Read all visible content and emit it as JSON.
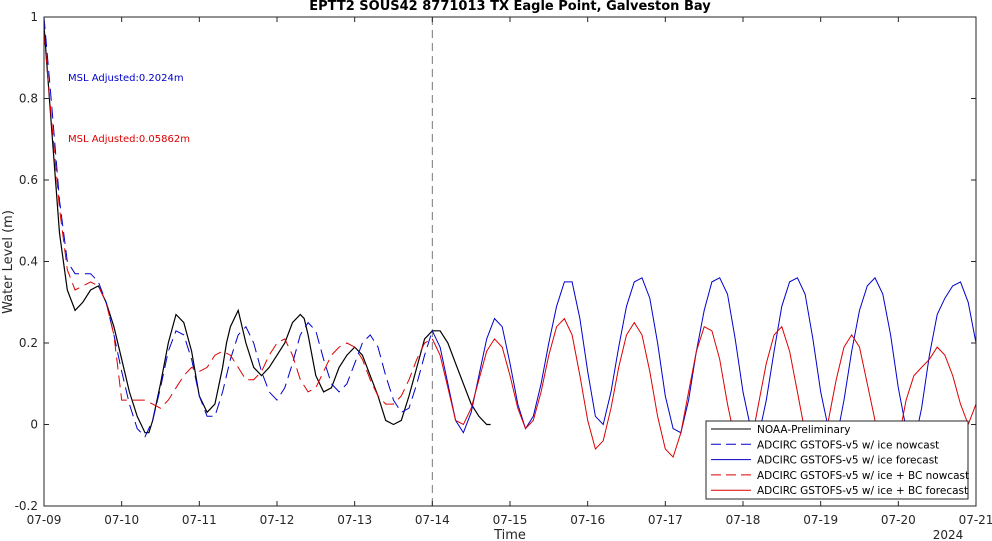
{
  "chart_data": {
    "type": "line",
    "title": "EPTT2 SOUS42 8771013 TX Eagle Point, Galveston Bay",
    "xlabel": "Time",
    "ylabel": "Water Level (m)",
    "year_label": "2024",
    "x_ticks": [
      "07-09",
      "07-10",
      "07-11",
      "07-12",
      "07-13",
      "07-14",
      "07-15",
      "07-16",
      "07-17",
      "07-18",
      "07-19",
      "07-20",
      "07-21"
    ],
    "xlim": [
      "07-09",
      "07-21"
    ],
    "ylim": [
      -0.2,
      1.0
    ],
    "y_ticks": [
      "-0.2",
      "0",
      "0.2",
      "0.4",
      "0.6",
      "0.8",
      "1"
    ],
    "grid": false,
    "nowcast_forecast_divider": "07-14",
    "annotations": [
      {
        "text": "MSL Adjusted:0.2024m",
        "color": "#0000cc"
      },
      {
        "text": "MSL Adjusted:0.05862m",
        "color": "#dd0000"
      }
    ],
    "legend_position": "bottom-right",
    "series": [
      {
        "name": "NOAA-Preliminary",
        "color": "#000000",
        "dash": "solid",
        "x": [
          0.0,
          0.1,
          0.2,
          0.3,
          0.4,
          0.5,
          0.6,
          0.7,
          0.75,
          0.8,
          0.9,
          1.0,
          1.1,
          1.2,
          1.3,
          1.35,
          1.4,
          1.5,
          1.6,
          1.7,
          1.8,
          1.9,
          2.0,
          2.1,
          2.2,
          2.3,
          2.35,
          2.4,
          2.5,
          2.6,
          2.7,
          2.8,
          2.9,
          3.0,
          3.1,
          3.2,
          3.3,
          3.35,
          3.4,
          3.5,
          3.6,
          3.7,
          3.8,
          3.9,
          4.0,
          4.1,
          4.2,
          4.3,
          4.4,
          4.5,
          4.6,
          4.7,
          4.8,
          4.9,
          5.0,
          5.1,
          5.2,
          5.3,
          5.4,
          5.5,
          5.6,
          5.7,
          5.75
        ],
        "y": [
          0.98,
          0.72,
          0.47,
          0.33,
          0.28,
          0.3,
          0.33,
          0.34,
          0.32,
          0.3,
          0.24,
          0.16,
          0.08,
          0.02,
          -0.02,
          -0.02,
          0.01,
          0.1,
          0.2,
          0.27,
          0.25,
          0.18,
          0.07,
          0.03,
          0.05,
          0.14,
          0.2,
          0.24,
          0.28,
          0.2,
          0.14,
          0.12,
          0.14,
          0.17,
          0.2,
          0.25,
          0.27,
          0.26,
          0.22,
          0.12,
          0.08,
          0.09,
          0.14,
          0.17,
          0.19,
          0.17,
          0.12,
          0.07,
          0.01,
          0.0,
          0.01,
          0.07,
          0.14,
          0.21,
          0.23,
          0.23,
          0.2,
          0.15,
          0.1,
          0.05,
          0.02,
          0.0,
          0.0
        ]
      },
      {
        "name": "ADCIRC GSTOFS-v5 w/ ice nowcast",
        "color": "#0000cc",
        "dash": "long",
        "x": [
          0.0,
          0.1,
          0.2,
          0.3,
          0.4,
          0.5,
          0.6,
          0.7,
          0.8,
          0.9,
          1.0,
          1.1,
          1.2,
          1.3,
          1.4,
          1.5,
          1.6,
          1.7,
          1.8,
          1.9,
          2.0,
          2.1,
          2.2,
          2.3,
          2.4,
          2.5,
          2.6,
          2.7,
          2.8,
          2.9,
          3.0,
          3.1,
          3.2,
          3.3,
          3.4,
          3.5,
          3.6,
          3.7,
          3.8,
          3.9,
          4.0,
          4.1,
          4.2,
          4.3,
          4.4,
          4.5,
          4.6,
          4.7,
          4.8,
          4.9,
          5.0
        ],
        "y": [
          1.0,
          0.78,
          0.55,
          0.4,
          0.37,
          0.37,
          0.37,
          0.35,
          0.3,
          0.22,
          0.13,
          0.05,
          -0.01,
          -0.03,
          0.01,
          0.09,
          0.18,
          0.23,
          0.22,
          0.16,
          0.07,
          0.02,
          0.02,
          0.08,
          0.16,
          0.22,
          0.24,
          0.2,
          0.13,
          0.08,
          0.06,
          0.09,
          0.15,
          0.22,
          0.25,
          0.23,
          0.16,
          0.1,
          0.08,
          0.1,
          0.15,
          0.2,
          0.22,
          0.19,
          0.12,
          0.06,
          0.03,
          0.04,
          0.1,
          0.17,
          0.23
        ]
      },
      {
        "name": "ADCIRC GSTOFS-v5 w/ ice forecast",
        "color": "#0000cc",
        "dash": "solid",
        "x": [
          5.0,
          5.1,
          5.2,
          5.3,
          5.4,
          5.5,
          5.6,
          5.7,
          5.8,
          5.9,
          6.0,
          6.1,
          6.2,
          6.3,
          6.4,
          6.5,
          6.6,
          6.7,
          6.8,
          6.9,
          7.0,
          7.1,
          7.2,
          7.3,
          7.4,
          7.5,
          7.6,
          7.7,
          7.8,
          7.9,
          8.0,
          8.1,
          8.2,
          8.3,
          8.4,
          8.5,
          8.6,
          8.7,
          8.8,
          8.9,
          9.0,
          9.1,
          9.2,
          9.3,
          9.4,
          9.5,
          9.6,
          9.7,
          9.8,
          9.9,
          10.0,
          10.1,
          10.2,
          10.3,
          10.4,
          10.5,
          10.6,
          10.7,
          10.8,
          10.9,
          11.0,
          11.1,
          11.2,
          11.3,
          11.4,
          11.5,
          11.6,
          11.7,
          11.8,
          11.9,
          12.0
        ],
        "y": [
          0.23,
          0.19,
          0.1,
          0.01,
          -0.02,
          0.03,
          0.12,
          0.21,
          0.26,
          0.24,
          0.15,
          0.05,
          -0.01,
          0.02,
          0.1,
          0.2,
          0.29,
          0.35,
          0.35,
          0.26,
          0.13,
          0.02,
          0.0,
          0.08,
          0.19,
          0.29,
          0.35,
          0.36,
          0.31,
          0.2,
          0.07,
          -0.01,
          -0.02,
          0.06,
          0.18,
          0.28,
          0.35,
          0.36,
          0.32,
          0.21,
          0.08,
          -0.01,
          -0.03,
          0.06,
          0.18,
          0.29,
          0.35,
          0.36,
          0.32,
          0.21,
          0.08,
          -0.01,
          -0.04,
          0.06,
          0.18,
          0.28,
          0.34,
          0.36,
          0.32,
          0.22,
          0.09,
          -0.01,
          -0.05,
          0.04,
          0.17,
          0.27,
          0.31,
          0.34,
          0.35,
          0.3,
          0.2
        ]
      },
      {
        "name": "ADCIRC GSTOFS-v5 w/ ice + BC nowcast",
        "color": "#dd0000",
        "dash": "long",
        "x": [
          0.0,
          0.1,
          0.2,
          0.3,
          0.4,
          0.5,
          0.6,
          0.7,
          0.8,
          0.9,
          1.0,
          1.1,
          1.2,
          1.3,
          1.4,
          1.5,
          1.6,
          1.7,
          1.8,
          1.9,
          2.0,
          2.1,
          2.2,
          2.3,
          2.4,
          2.5,
          2.6,
          2.7,
          2.8,
          2.9,
          3.0,
          3.1,
          3.2,
          3.3,
          3.4,
          3.5,
          3.6,
          3.7,
          3.8,
          3.9,
          4.0,
          4.1,
          4.2,
          4.3,
          4.4,
          4.5,
          4.6,
          4.7,
          4.8,
          4.9,
          5.0
        ],
        "y": [
          0.96,
          0.74,
          0.53,
          0.38,
          0.33,
          0.34,
          0.35,
          0.34,
          0.3,
          0.22,
          0.06,
          0.06,
          0.06,
          0.06,
          0.05,
          0.04,
          0.06,
          0.09,
          0.12,
          0.14,
          0.13,
          0.14,
          0.17,
          0.18,
          0.17,
          0.14,
          0.11,
          0.11,
          0.13,
          0.17,
          0.2,
          0.21,
          0.17,
          0.11,
          0.08,
          0.09,
          0.13,
          0.17,
          0.19,
          0.2,
          0.19,
          0.16,
          0.11,
          0.07,
          0.05,
          0.05,
          0.07,
          0.11,
          0.16,
          0.2,
          0.21
        ]
      },
      {
        "name": "ADCIRC GSTOFS-v5 w/ ice + BC forecast",
        "color": "#dd0000",
        "dash": "solid",
        "x": [
          5.0,
          5.1,
          5.2,
          5.3,
          5.4,
          5.5,
          5.6,
          5.7,
          5.8,
          5.9,
          6.0,
          6.1,
          6.2,
          6.3,
          6.4,
          6.5,
          6.6,
          6.7,
          6.8,
          6.9,
          7.0,
          7.1,
          7.2,
          7.3,
          7.4,
          7.5,
          7.6,
          7.7,
          7.8,
          7.9,
          8.0,
          8.1,
          8.2,
          8.3,
          8.4,
          8.5,
          8.6,
          8.7,
          8.8,
          8.9,
          9.0,
          9.1,
          9.2,
          9.3,
          9.4,
          9.5,
          9.6,
          9.7,
          9.8,
          9.9,
          10.0,
          10.1,
          10.2,
          10.3,
          10.4,
          10.5,
          10.6,
          10.7,
          10.8,
          10.9,
          11.0,
          11.1,
          11.2,
          11.3,
          11.4,
          11.5,
          11.6,
          11.7,
          11.8,
          11.9,
          12.0
        ],
        "y": [
          0.21,
          0.17,
          0.09,
          0.01,
          0.0,
          0.04,
          0.11,
          0.18,
          0.21,
          0.19,
          0.12,
          0.04,
          -0.01,
          0.01,
          0.08,
          0.17,
          0.24,
          0.26,
          0.22,
          0.12,
          0.01,
          -0.06,
          -0.04,
          0.04,
          0.14,
          0.22,
          0.25,
          0.22,
          0.13,
          0.02,
          -0.06,
          -0.08,
          -0.02,
          0.08,
          0.18,
          0.24,
          0.23,
          0.16,
          0.05,
          -0.04,
          -0.08,
          -0.05,
          0.05,
          0.15,
          0.22,
          0.24,
          0.18,
          0.08,
          -0.02,
          -0.08,
          -0.07,
          0.01,
          0.11,
          0.19,
          0.22,
          0.19,
          0.1,
          0.01,
          -0.07,
          -0.09,
          -0.04,
          0.06,
          0.12,
          0.14,
          0.16,
          0.19,
          0.17,
          0.12,
          0.05,
          0.0,
          0.05
        ]
      }
    ]
  }
}
